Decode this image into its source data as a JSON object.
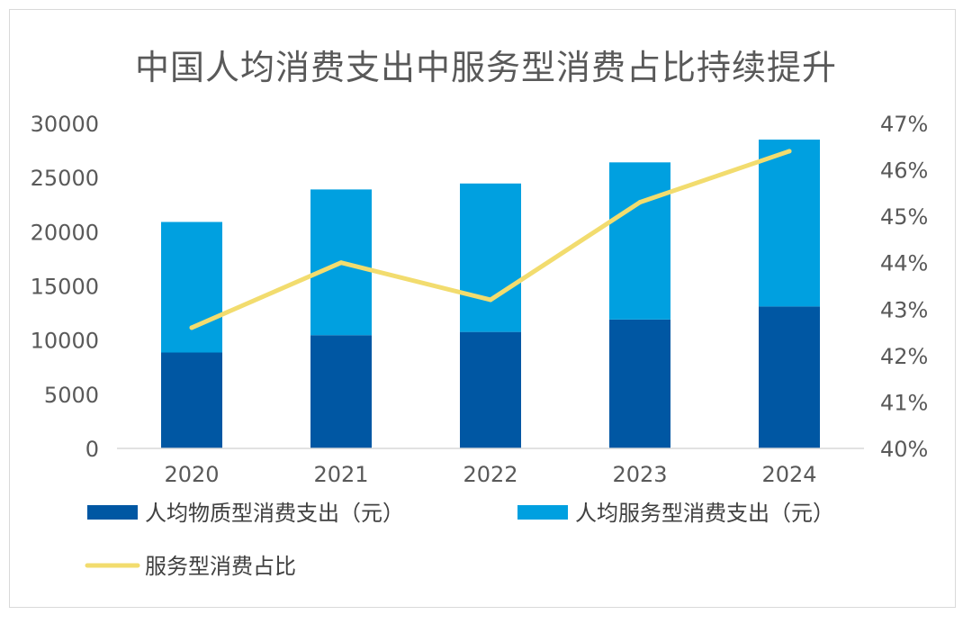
{
  "chart_data": {
    "type": "bar",
    "title": "中国人均消费支出中服务型消费占比持续提升",
    "categories": [
      "2020",
      "2021",
      "2022",
      "2023",
      "2024"
    ],
    "series": [
      {
        "name": "人均物质型消费支出（元）",
        "type": "stacked-bar",
        "axis": "left",
        "color": "#0057a3",
        "values": [
          8850,
          10450,
          10750,
          11900,
          13100
        ]
      },
      {
        "name": "人均服务型消费支出（元）",
        "type": "stacked-bar",
        "axis": "left",
        "color": "#00a0e0",
        "values": [
          12050,
          13450,
          13700,
          14500,
          15400
        ]
      },
      {
        "name": "服务型消费占比",
        "type": "line",
        "axis": "right",
        "color": "#f2dc6e",
        "values": [
          42.6,
          44.0,
          43.2,
          45.3,
          46.4
        ]
      }
    ],
    "y_left": {
      "ylim": [
        0,
        30000
      ],
      "ticks": [
        "30000",
        "25000",
        "20000",
        "15000",
        "10000",
        "5000",
        "0"
      ]
    },
    "y_right": {
      "ylim": [
        40,
        47
      ],
      "ticks": [
        "47%",
        "46%",
        "45%",
        "44%",
        "43%",
        "42%",
        "41%",
        "40%"
      ]
    },
    "grid": false,
    "legend": "bottom"
  }
}
